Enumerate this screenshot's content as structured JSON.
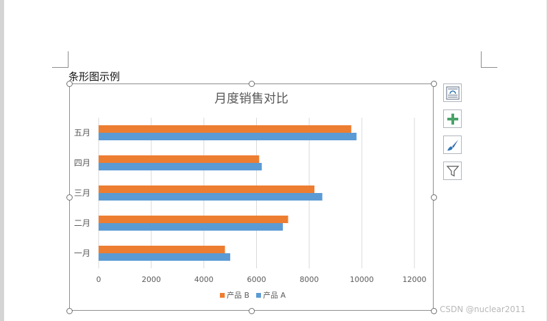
{
  "document": {
    "heading": "条形图示例"
  },
  "chart_data": {
    "type": "bar",
    "orientation": "horizontal",
    "title": "月度销售对比",
    "categories": [
      "一月",
      "二月",
      "三月",
      "四月",
      "五月"
    ],
    "series": [
      {
        "name": "产品 A",
        "color": "#5b9bd5",
        "values": [
          5000,
          7000,
          8500,
          6200,
          9800
        ]
      },
      {
        "name": "产品 B",
        "color": "#ed7d31",
        "values": [
          4800,
          7200,
          8200,
          6100,
          9600
        ]
      }
    ],
    "xlim": [
      0,
      12000
    ],
    "xticks": [
      0,
      2000,
      4000,
      6000,
      8000,
      10000,
      12000
    ],
    "grid": true,
    "legend": "bottom",
    "legend_order": [
      "产品 B",
      "产品 A"
    ]
  },
  "side_tools": [
    {
      "name": "layout-options",
      "icon": "layout-options-icon"
    },
    {
      "name": "chart-elements",
      "icon": "plus-icon"
    },
    {
      "name": "chart-styles",
      "icon": "paintbrush-icon"
    },
    {
      "name": "chart-filters",
      "icon": "filter-icon"
    }
  ],
  "watermark": "CSDN @nuclear2011"
}
